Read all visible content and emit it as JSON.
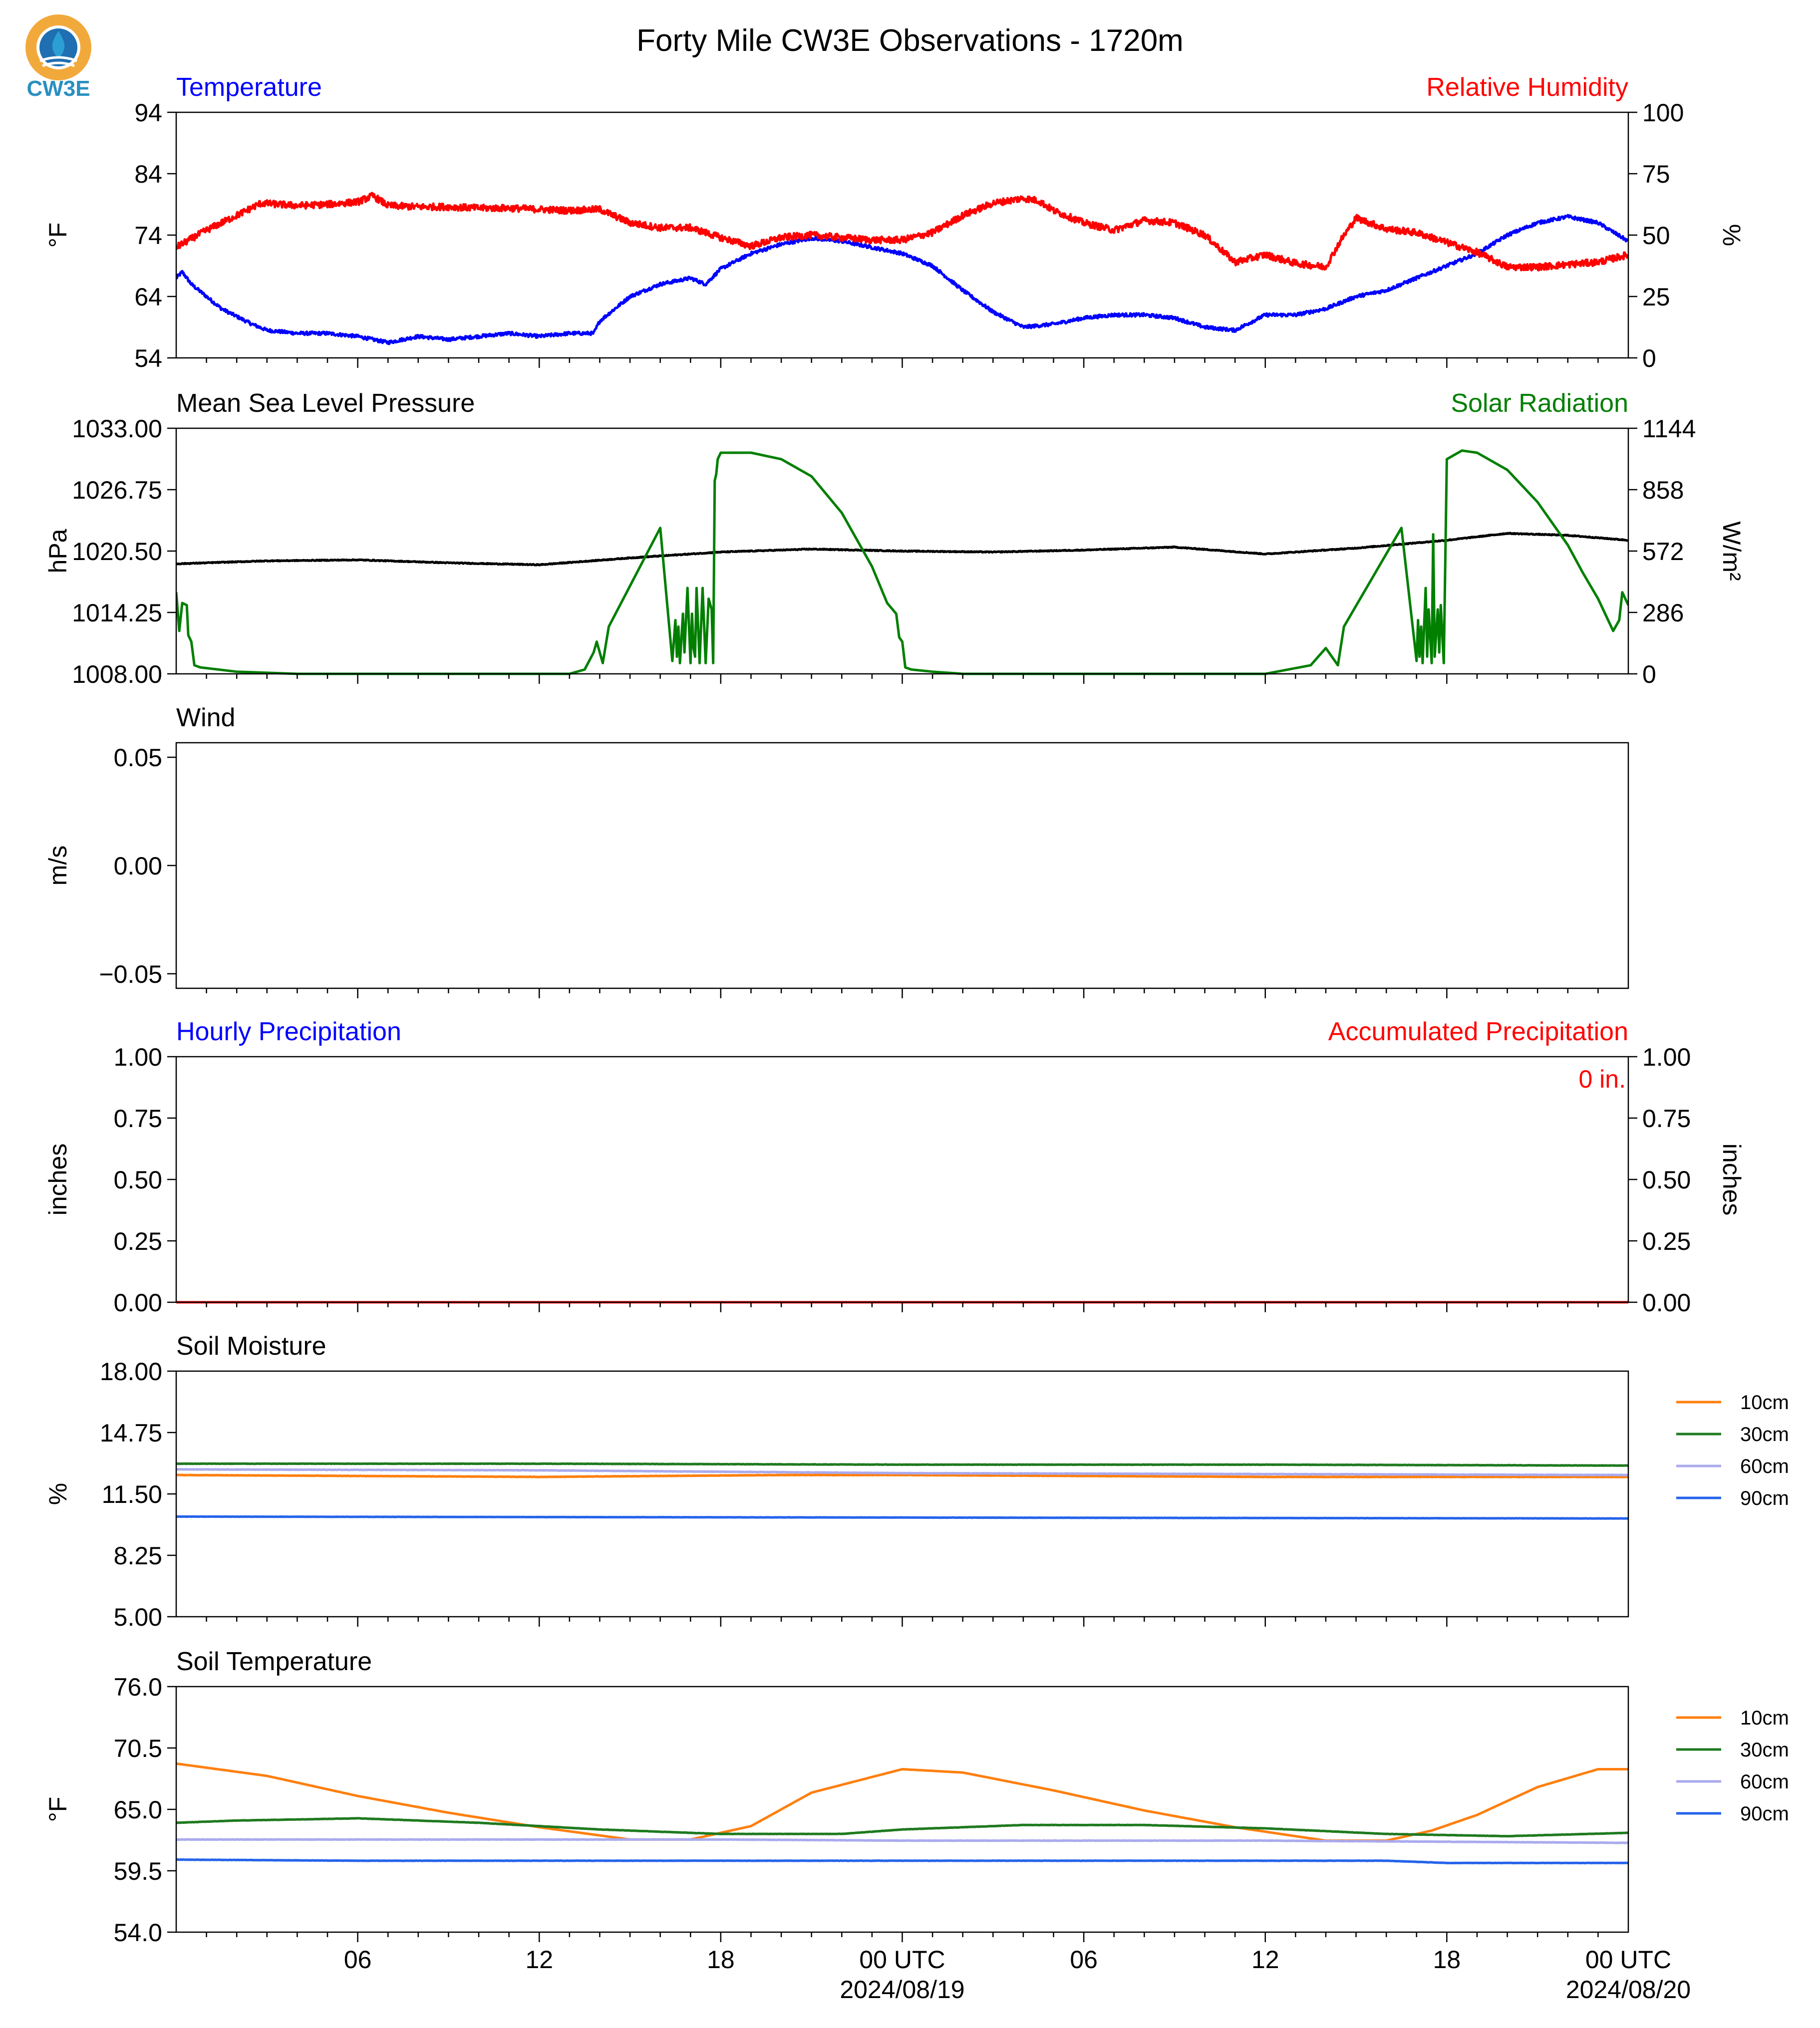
{
  "title": "Forty Mile CW3E Observations - 1720m",
  "logo": {
    "text": "CW3E",
    "ring_color": "#f2a93b",
    "drop_color": "#2b9fd4",
    "text_color": "#2a8fc0"
  },
  "time_axis": {
    "start_hour": 0,
    "end_hour": 48,
    "tick_hours": [
      6,
      12,
      18,
      24,
      30,
      36,
      42,
      48
    ],
    "tick_labels": [
      "06",
      "12",
      "18",
      "00 UTC",
      "06",
      "12",
      "18",
      "00 UTC"
    ],
    "date_labels": [
      {
        "hour": 24,
        "text": "2024/08/19"
      },
      {
        "hour": 48,
        "text": "2024/08/20"
      }
    ]
  },
  "chart_data": [
    {
      "type": "line",
      "title_left": "Temperature",
      "title_left_color": "#0000ff",
      "title_right": "Relative Humidity",
      "title_right_color": "#ff0000",
      "ylabel": "°F",
      "ylabel_right": "%",
      "ylim": [
        54,
        94
      ],
      "yticks": [
        "54",
        "64",
        "74",
        "84",
        "94"
      ],
      "ylim_right": [
        0,
        100
      ],
      "yticks_right": [
        "0",
        "25",
        "50",
        "75",
        "100"
      ],
      "series": [
        {
          "name": "Temperature",
          "color": "#0000ff",
          "axis": "left",
          "noise": 0.45,
          "smooth": false,
          "x": [
            0,
            0.2,
            0.5,
            1.5,
            2.5,
            3,
            4,
            5,
            6,
            6.5,
            7,
            8,
            9,
            10,
            11,
            12,
            13,
            13.8,
            14,
            14.5,
            15,
            16,
            17,
            17.5,
            18,
            19,
            20,
            21,
            22,
            23,
            24,
            25,
            26,
            27,
            28,
            29,
            30,
            31,
            32,
            33,
            34,
            35,
            36,
            37,
            38,
            39,
            40,
            41,
            42,
            43,
            44,
            45,
            46,
            47,
            48
          ],
          "y": [
            67,
            68,
            66,
            62,
            59.5,
            58.5,
            58,
            58,
            57.5,
            57,
            56.5,
            57.5,
            57,
            57.5,
            58,
            57.5,
            58,
            58,
            60,
            62,
            64,
            66,
            67,
            66,
            68.5,
            71,
            72.5,
            73.5,
            73,
            72,
            71,
            69,
            65,
            61.5,
            59,
            59.5,
            60.5,
            61,
            61,
            60.5,
            59,
            58.5,
            61,
            61,
            62,
            64,
            65,
            67,
            69,
            71,
            74,
            76,
            77,
            76,
            73
          ]
        },
        {
          "name": "Relative Humidity",
          "color": "#ff0000",
          "axis": "right",
          "noise": 0.9,
          "smooth": false,
          "x": [
            0,
            1,
            2,
            2.8,
            4,
            5,
            6,
            6.5,
            7,
            8,
            9,
            10,
            11,
            12,
            13,
            14,
            15,
            16,
            17,
            18,
            19,
            20,
            21,
            22,
            23,
            24,
            25,
            26,
            27,
            28,
            28.5,
            29,
            30,
            31,
            32,
            33,
            34,
            35,
            36,
            37,
            38,
            38.5,
            39,
            40,
            41,
            42,
            43,
            44,
            45,
            46,
            47,
            48
          ],
          "y": [
            45,
            52,
            58,
            63,
            62,
            62.5,
            63.5,
            66,
            62,
            61.5,
            61.5,
            61,
            61,
            60.5,
            60,
            60.5,
            55,
            53,
            53,
            49,
            45.5,
            49,
            50,
            49,
            48,
            48,
            51,
            58,
            63,
            65,
            64,
            60,
            55,
            52,
            56,
            55,
            50,
            39,
            42,
            38.5,
            37,
            48,
            57,
            52.5,
            51,
            47,
            43,
            37,
            37,
            38,
            39,
            42
          ]
        }
      ]
    },
    {
      "type": "line",
      "title_left": "Mean Sea Level Pressure",
      "title_left_color": "#000000",
      "title_right": "Solar Radiation",
      "title_right_color": "#007f00",
      "ylabel": "hPa",
      "ylabel_right": "W/m²",
      "ylim": [
        1008,
        1033
      ],
      "yticks": [
        "1008.00",
        "1014.25",
        "1020.50",
        "1026.75",
        "1033.00"
      ],
      "ylim_right": [
        0,
        1144
      ],
      "yticks_right": [
        "0",
        "286",
        "572",
        "858",
        "1144"
      ],
      "series": [
        {
          "name": "Mean Sea Level Pressure",
          "color": "#000000",
          "axis": "left",
          "noise": 0.12,
          "smooth": false,
          "x": [
            0,
            3,
            6,
            9,
            12,
            15,
            18,
            21,
            24,
            27,
            30,
            33,
            36,
            39,
            42,
            44,
            46,
            48
          ],
          "y": [
            1019.2,
            1019.5,
            1019.6,
            1019.3,
            1019.1,
            1019.8,
            1020.4,
            1020.7,
            1020.5,
            1020.4,
            1020.6,
            1020.9,
            1020.2,
            1020.8,
            1021.6,
            1022.3,
            1022.1,
            1021.6
          ]
        },
        {
          "name": "Solar Radiation",
          "color": "#007f00",
          "axis": "right",
          "noise": 0,
          "smooth": false,
          "x": [
            0,
            0.1,
            0.2,
            0.35,
            0.4,
            0.5,
            0.6,
            0.8,
            2,
            4,
            8,
            12,
            13,
            13.5,
            13.8,
            13.9,
            14.1,
            14.3,
            16,
            16.4,
            16.5,
            16.55,
            16.6,
            16.65,
            16.75,
            16.8,
            16.9,
            17,
            17.05,
            17.1,
            17.15,
            17.2,
            17.3,
            17.4,
            17.5,
            17.6,
            17.7,
            17.75,
            17.8,
            17.85,
            17.9,
            18,
            19,
            20,
            21,
            22,
            23,
            23.5,
            23.8,
            23.9,
            24,
            24.1,
            24.3,
            25,
            26,
            28,
            32,
            36,
            37.5,
            38,
            38.2,
            38.4,
            38.6,
            40.5,
            41,
            41.05,
            41.1,
            41.15,
            41.2,
            41.3,
            41.35,
            41.4,
            41.5,
            41.55,
            41.6,
            41.7,
            41.75,
            41.8,
            41.9,
            42,
            42.5,
            43,
            44,
            45,
            46,
            46.5,
            47,
            47.5,
            47.7,
            47.8,
            48
          ],
          "y": [
            380,
            200,
            330,
            320,
            180,
            150,
            40,
            30,
            10,
            0,
            0,
            0,
            0,
            20,
            100,
            150,
            50,
            220,
            680,
            60,
            250,
            80,
            220,
            50,
            280,
            100,
            400,
            50,
            280,
            120,
            80,
            400,
            50,
            400,
            50,
            350,
            300,
            50,
            900,
            930,
            1000,
            1030,
            1030,
            1000,
            920,
            750,
            500,
            330,
            280,
            170,
            150,
            30,
            20,
            10,
            0,
            0,
            0,
            0,
            40,
            120,
            80,
            40,
            220,
            680,
            60,
            250,
            80,
            220,
            50,
            400,
            80,
            300,
            50,
            650,
            80,
            300,
            100,
            320,
            50,
            1000,
            1040,
            1030,
            950,
            800,
            600,
            470,
            350,
            200,
            250,
            380,
            320
          ]
        }
      ]
    },
    {
      "type": "line",
      "title_left": "Wind",
      "title_left_color": "#000000",
      "ylabel": "m/s",
      "ylim": [
        -0.0567,
        0.0567
      ],
      "yticks": [
        "−0.05",
        "0.00",
        "0.05"
      ],
      "ytick_values": [
        -0.05,
        0,
        0.05
      ],
      "series": []
    },
    {
      "type": "line",
      "title_left": "Hourly Precipitation",
      "title_left_color": "#0000ff",
      "title_right": "Accumulated Precipitation",
      "title_right_color": "#ff0000",
      "annotation": "0 in.",
      "annotation_color": "#ff0000",
      "ylabel": "inches",
      "ylabel_right": "inches",
      "ylim": [
        0,
        1
      ],
      "yticks": [
        "0.00",
        "0.25",
        "0.50",
        "0.75",
        "1.00"
      ],
      "ylim_right": [
        0,
        1
      ],
      "yticks_right": [
        "0.00",
        "0.25",
        "0.50",
        "0.75",
        "1.00"
      ],
      "series": [
        {
          "name": "Hourly Precipitation",
          "color": "#0000ff",
          "axis": "left",
          "noise": 0,
          "smooth": false,
          "x": [
            0,
            48
          ],
          "y": [
            0,
            0
          ]
        },
        {
          "name": "Accumulated Precipitation",
          "color": "#ff0000",
          "axis": "right",
          "noise": 0,
          "smooth": false,
          "x": [
            0,
            48
          ],
          "y": [
            0,
            0
          ]
        }
      ]
    },
    {
      "type": "line",
      "title_left": "Soil Moisture",
      "title_left_color": "#000000",
      "ylabel": "%",
      "ylim": [
        5,
        18
      ],
      "yticks": [
        "5.00",
        "8.25",
        "11.50",
        "14.75",
        "18.00"
      ],
      "legend": [
        "10cm",
        "30cm",
        "60cm",
        "90cm"
      ],
      "series": [
        {
          "name": "10cm",
          "color": "#ff7f0e",
          "axis": "left",
          "noise": 0.05,
          "smooth": false,
          "x": [
            0,
            12,
            20,
            24,
            36,
            44,
            48
          ],
          "y": [
            12.5,
            12.4,
            12.5,
            12.5,
            12.4,
            12.4,
            12.4
          ]
        },
        {
          "name": "30cm",
          "color": "#1f7a1f",
          "axis": "left",
          "noise": 0.05,
          "smooth": false,
          "x": [
            0,
            12,
            24,
            36,
            48
          ],
          "y": [
            13.1,
            13.1,
            13.05,
            13.05,
            13.0
          ]
        },
        {
          "name": "60cm",
          "color": "#aaaaee",
          "axis": "left",
          "noise": 0.05,
          "smooth": false,
          "x": [
            0,
            12,
            24,
            36,
            48
          ],
          "y": [
            12.8,
            12.75,
            12.6,
            12.55,
            12.5
          ]
        },
        {
          "name": "90cm",
          "color": "#2563eb",
          "axis": "left",
          "noise": 0.03,
          "smooth": false,
          "x": [
            0,
            24,
            48
          ],
          "y": [
            10.3,
            10.25,
            10.2
          ]
        }
      ]
    },
    {
      "type": "line",
      "title_left": "Soil Temperature",
      "title_left_color": "#000000",
      "ylabel": "°F",
      "ylim": [
        54,
        76
      ],
      "yticks": [
        "54.0",
        "59.5",
        "65.0",
        "70.5",
        "76.0"
      ],
      "legend": [
        "10cm",
        "30cm",
        "60cm",
        "90cm"
      ],
      "series": [
        {
          "name": "10cm",
          "color": "#ff7f0e",
          "axis": "left",
          "noise": 0,
          "smooth": true,
          "x": [
            0,
            3,
            6,
            9,
            12,
            15,
            17,
            19,
            21,
            24,
            26,
            29,
            32,
            35,
            38,
            40,
            41.5,
            43,
            45,
            47,
            48
          ],
          "y": [
            69.1,
            68,
            66.2,
            64.7,
            63.4,
            62.3,
            62.3,
            63.5,
            66.5,
            68.6,
            68.3,
            66.7,
            64.9,
            63.4,
            62.2,
            62.2,
            63.1,
            64.5,
            67.0,
            68.6,
            68.6
          ]
        },
        {
          "name": "30cm",
          "color": "#1f7a1f",
          "axis": "left",
          "noise": 0.04,
          "smooth": false,
          "x": [
            0,
            2,
            6,
            10,
            14,
            18,
            22,
            24,
            28,
            32,
            36,
            40,
            44,
            48
          ],
          "y": [
            63.8,
            64.0,
            64.2,
            63.8,
            63.2,
            62.8,
            62.8,
            63.2,
            63.6,
            63.6,
            63.3,
            62.8,
            62.6,
            62.9
          ]
        },
        {
          "name": "60cm",
          "color": "#aaaaee",
          "axis": "left",
          "noise": 0.05,
          "smooth": false,
          "x": [
            0,
            6,
            12,
            18,
            24,
            30,
            36,
            42,
            48
          ],
          "y": [
            62.3,
            62.3,
            62.3,
            62.3,
            62.2,
            62.2,
            62.2,
            62.1,
            62.0
          ]
        },
        {
          "name": "90cm",
          "color": "#2563eb",
          "axis": "left",
          "noise": 0.04,
          "smooth": false,
          "x": [
            0,
            6,
            12,
            18,
            24,
            30,
            36,
            40,
            42,
            48
          ],
          "y": [
            60.5,
            60.4,
            60.4,
            60.4,
            60.4,
            60.4,
            60.4,
            60.4,
            60.2,
            60.2
          ]
        }
      ]
    }
  ]
}
